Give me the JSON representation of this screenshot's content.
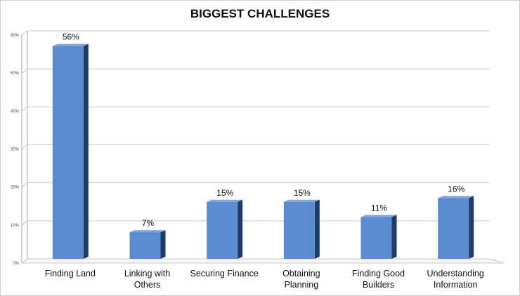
{
  "chart_data": {
    "type": "bar",
    "title": "BIGGEST CHALLENGES",
    "categories": [
      [
        "Finding Land"
      ],
      [
        "Linking with",
        "Others"
      ],
      [
        "Securing Finance"
      ],
      [
        "Obtaining",
        "Planning"
      ],
      [
        "Finding Good",
        "Builders"
      ],
      [
        "Understanding",
        "Information"
      ]
    ],
    "values": [
      56,
      7,
      15,
      15,
      11,
      16
    ],
    "data_labels": [
      "56%",
      "7%",
      "15%",
      "15%",
      "11%",
      "16%"
    ],
    "ylim": [
      0,
      60
    ],
    "yticks": [
      0,
      10,
      20,
      30,
      40,
      50,
      60
    ],
    "ytick_labels": [
      "0%",
      "10%",
      "20%",
      "30%",
      "40%",
      "50%",
      "60%"
    ],
    "xlabel": "",
    "ylabel": "",
    "grid": true,
    "legend": "none",
    "colors": {
      "bar_front": "#5b8ccf",
      "bar_side": "#1f3b6a",
      "bar_top": "#7fa7dc",
      "grid": "#c8c8c8",
      "axis": "#aaaaaa"
    }
  }
}
